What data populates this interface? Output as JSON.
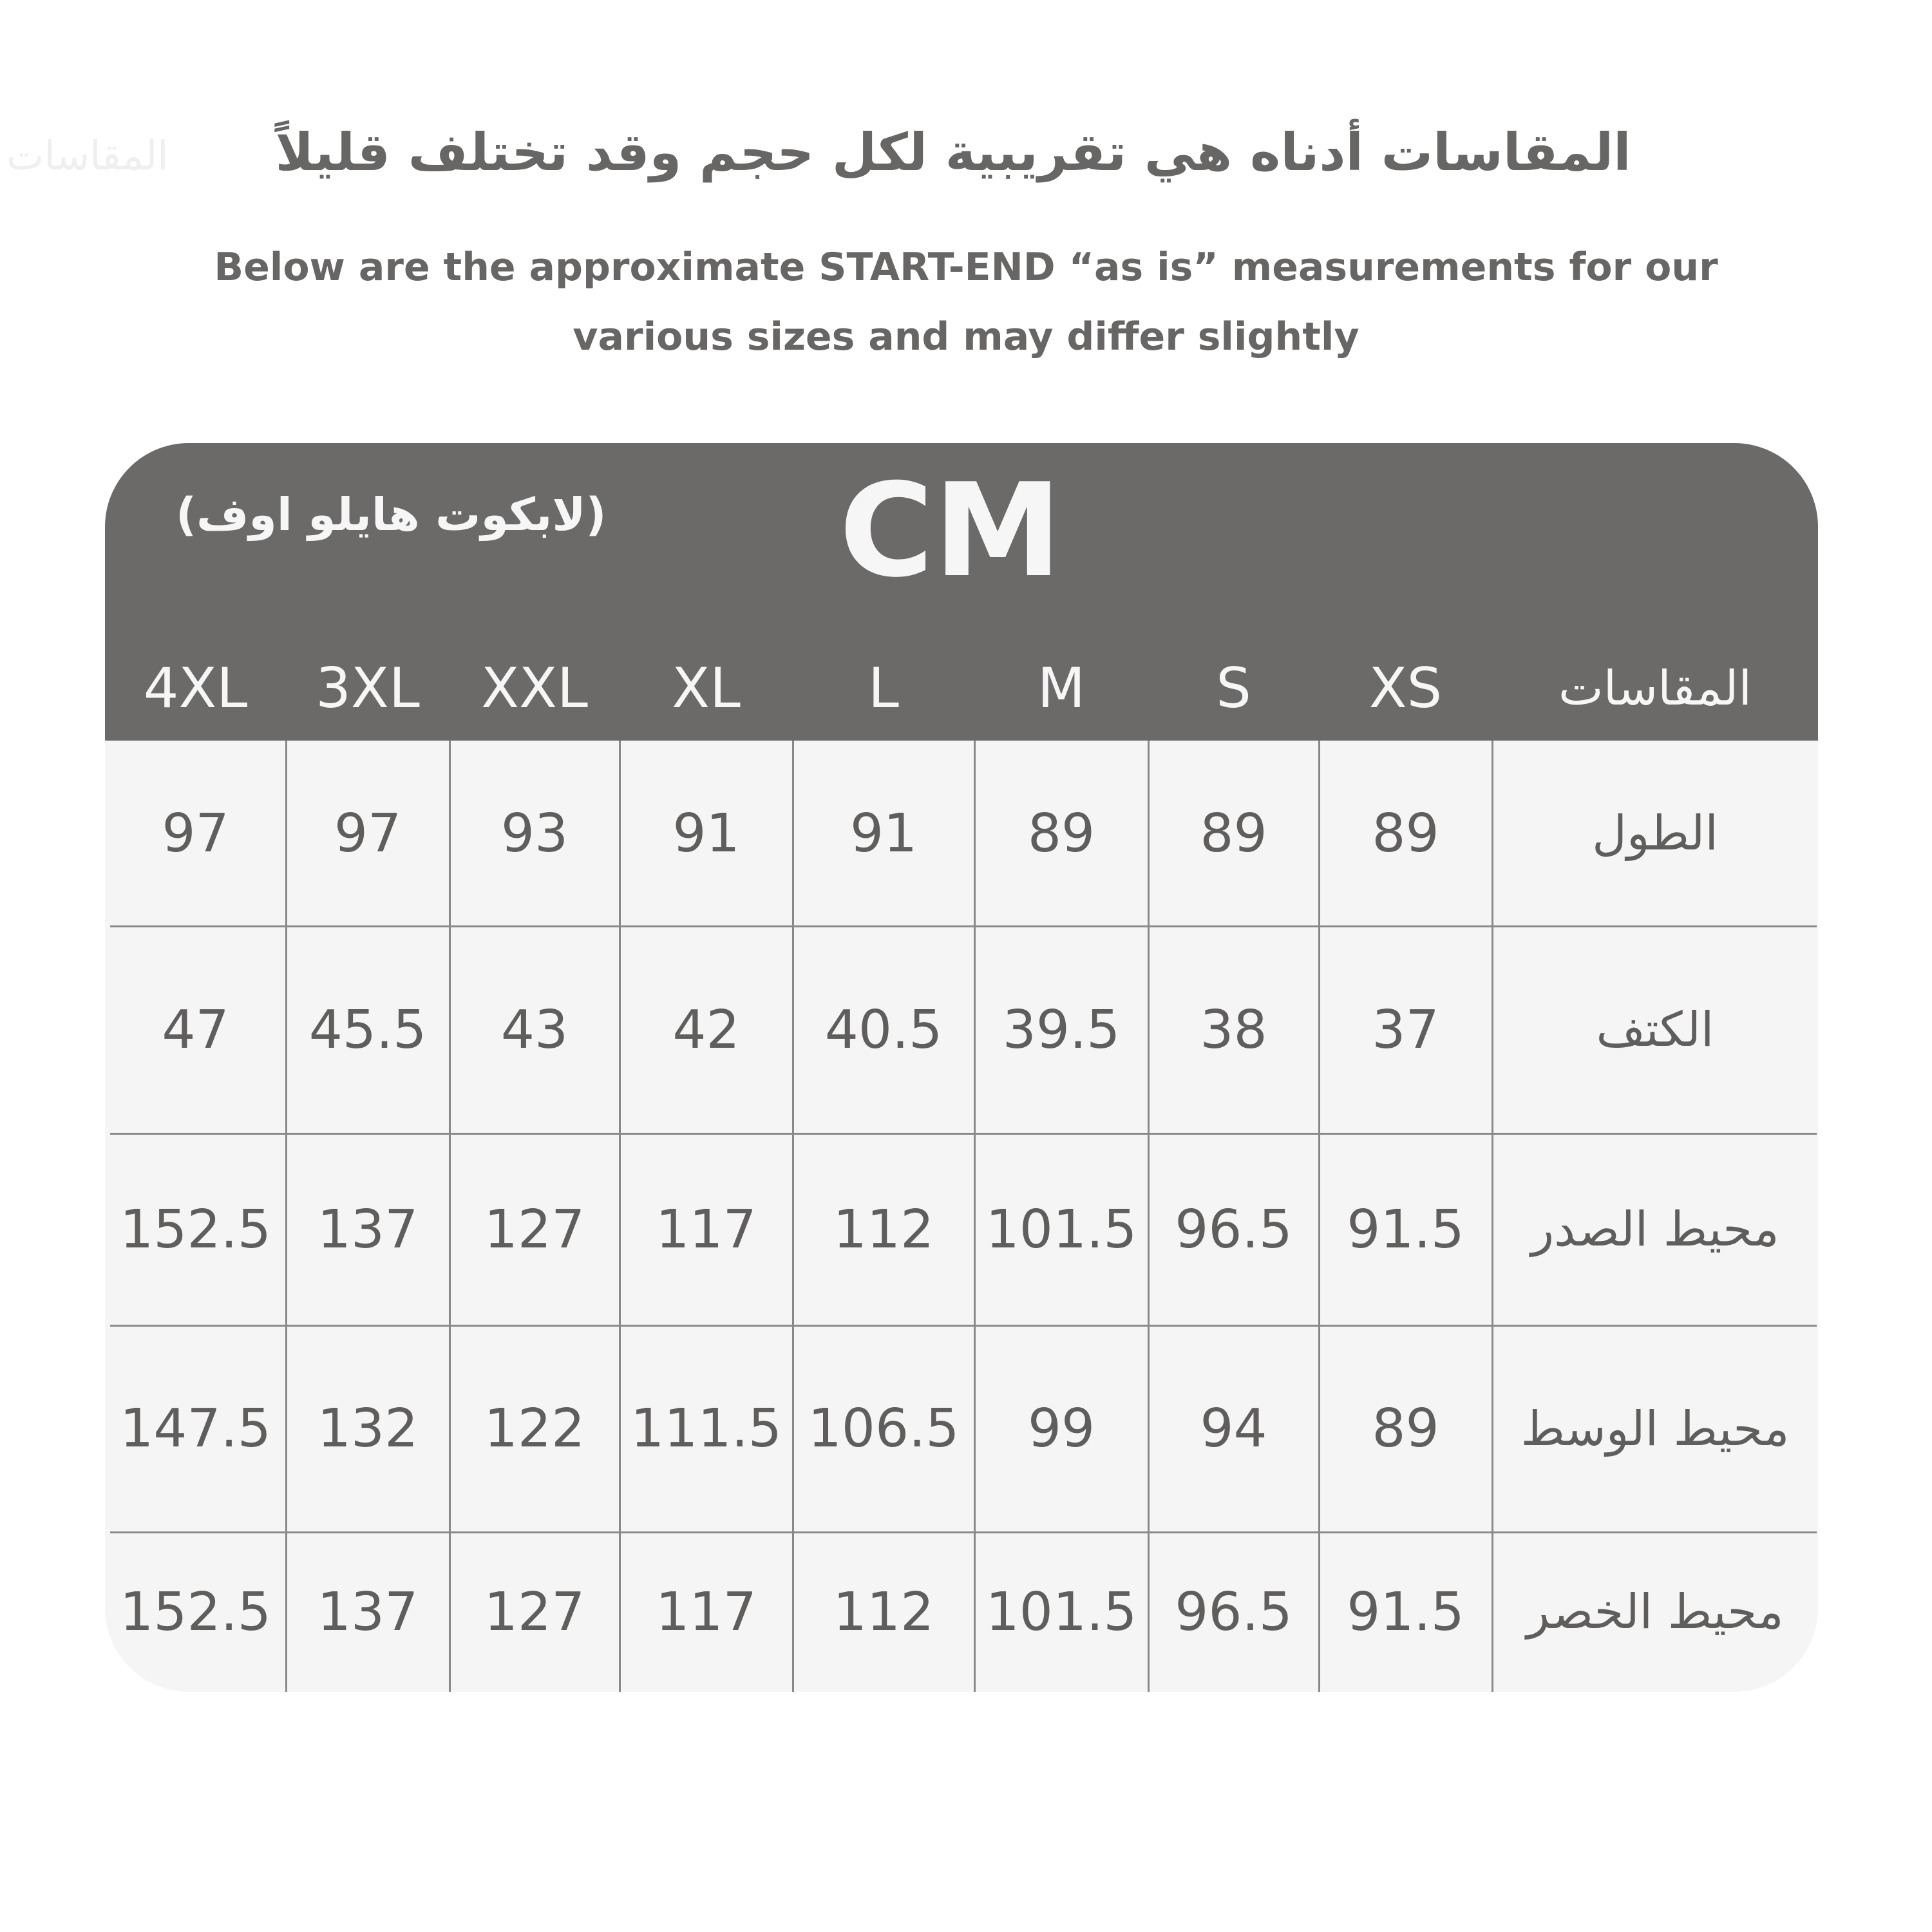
{
  "header": {
    "ghost_text": "المقاسات",
    "title_ar": "المقاسات أدناه هي تقريبية لكل حجم وقد تختلف قليلاً",
    "subtitle_line1": "Below are the approximate START-END “as is” measurements for our",
    "subtitle_line2": "various sizes and may differ slightly"
  },
  "table": {
    "unit": "CM",
    "product_name": "(لابكوت هايلو اوف)",
    "label_header": "المقاسات",
    "sizes": [
      "XS",
      "S",
      "M",
      "L",
      "XL",
      "XXL",
      "3XL",
      "4XL"
    ],
    "rows": [
      {
        "label": "الطول",
        "values": [
          "89",
          "89",
          "89",
          "91",
          "91",
          "93",
          "97",
          "97"
        ]
      },
      {
        "label": "الكتف",
        "values": [
          "37",
          "38",
          "39.5",
          "40.5",
          "42",
          "43",
          "45.5",
          "47"
        ]
      },
      {
        "label": "محيط الصدر",
        "values": [
          "91.5",
          "96.5",
          "101.5",
          "112",
          "117",
          "127",
          "137",
          "152.5"
        ]
      },
      {
        "label": "محيط الوسط",
        "values": [
          "89",
          "94",
          "99",
          "106.5",
          "111.5",
          "122",
          "132",
          "147.5"
        ]
      },
      {
        "label": "محيط الخصر",
        "values": [
          "91.5",
          "96.5",
          "101.5",
          "112",
          "117",
          "127",
          "137",
          "152.5"
        ]
      }
    ]
  },
  "colors": {
    "header_bg": "#6b6a68",
    "body_bg": "#f5f5f5",
    "text": "#676664"
  }
}
